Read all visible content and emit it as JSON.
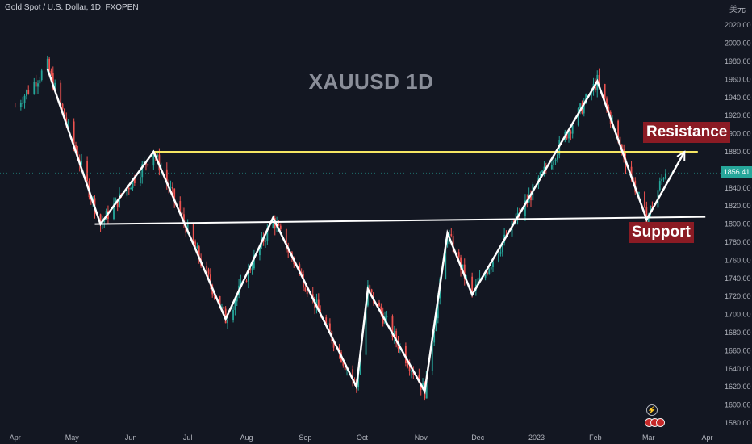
{
  "header": {
    "symbol": "Gold Spot / U.S. Dollar, 1D, FXOPEN",
    "unit": "美元"
  },
  "watermark": "XAUUSD 1D",
  "annotations": {
    "resistance": "Resistance",
    "support": "Support"
  },
  "last_price": "1856.41",
  "colors": {
    "background": "#131722",
    "up": "#26a69a",
    "down": "#ef5350",
    "resistance_line": "#f5e663",
    "pattern_lines": "#ffffff",
    "tag_bg": "#8b1b24"
  },
  "chart_data": {
    "type": "candlestick",
    "title": "XAUUSD 1D",
    "x_ticks": [
      "Apr",
      "May",
      "Jun",
      "Jul",
      "Aug",
      "Sep",
      "Oct",
      "Nov",
      "Dec",
      "2023",
      "Feb",
      "Mar",
      "Apr"
    ],
    "y_ticks": [
      1580,
      1600,
      1620,
      1640,
      1660,
      1680,
      1700,
      1720,
      1740,
      1760,
      1780,
      1800,
      1820,
      1840,
      1860,
      1880,
      1900,
      1920,
      1940,
      1960,
      1980,
      2000,
      2020
    ],
    "ylim": [
      1572,
      2030
    ],
    "price_path": [
      [
        "2022-04-01",
        1930
      ],
      [
        "2022-04-18",
        1975
      ],
      [
        "2022-05-16",
        1800
      ],
      [
        "2022-06-13",
        1880
      ],
      [
        "2022-07-21",
        1695
      ],
      [
        "2022-08-15",
        1805
      ],
      [
        "2022-09-28",
        1620
      ],
      [
        "2022-10-04",
        1728
      ],
      [
        "2022-11-03",
        1615
      ],
      [
        "2022-11-15",
        1790
      ],
      [
        "2022-11-28",
        1722
      ],
      [
        "2023-02-02",
        1958
      ],
      [
        "2023-02-28",
        1805
      ],
      [
        "2023-03-10",
        1860
      ]
    ],
    "pattern_line": [
      [
        "2022-04-18",
        1972
      ],
      [
        "2022-05-16",
        1800
      ],
      [
        "2022-06-13",
        1880
      ],
      [
        "2022-07-21",
        1695
      ],
      [
        "2022-08-15",
        1807
      ],
      [
        "2022-09-28",
        1620
      ],
      [
        "2022-10-04",
        1728
      ],
      [
        "2022-11-03",
        1615
      ],
      [
        "2022-11-15",
        1790
      ],
      [
        "2022-11-28",
        1722
      ],
      [
        "2023-02-02",
        1958
      ],
      [
        "2023-02-28",
        1805
      ],
      [
        "2023-03-20",
        1880
      ]
    ],
    "resistance_level": [
      [
        "2022-06-13",
        1880
      ],
      [
        "2023-03-27",
        1880
      ]
    ],
    "support_line": [
      [
        "2022-05-13",
        1800
      ],
      [
        "2023-03-31",
        1808
      ]
    ],
    "last_price": 1856.41
  }
}
